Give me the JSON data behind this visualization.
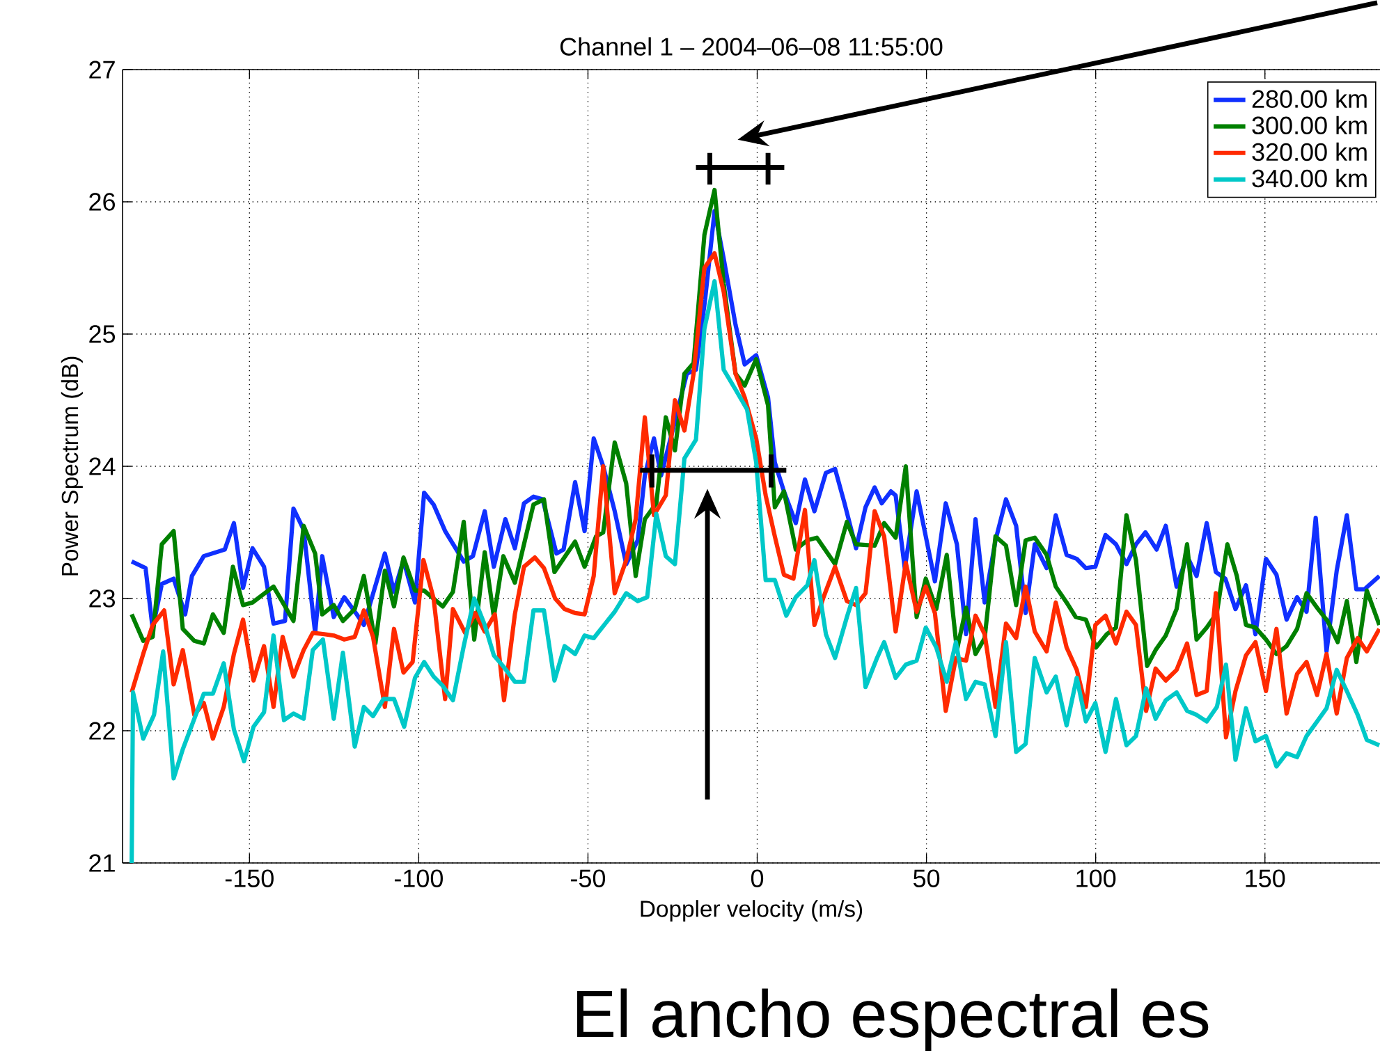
{
  "chart_data": {
    "type": "line",
    "title": "Channel 1 – 2004–06–08 11:55:00",
    "xlabel": "Doppler velocity (m/s)",
    "ylabel": "Power Spectrum (dB)",
    "xlim": [
      -187.5,
      184
    ],
    "ylim": [
      21,
      27
    ],
    "xticks": [
      -150,
      -100,
      -50,
      0,
      50,
      100,
      150
    ],
    "yticks": [
      21,
      22,
      23,
      24,
      25,
      26,
      27
    ],
    "grid": true,
    "legend": "top right",
    "annotations": [
      "El ancho espectral es"
    ],
    "series": [
      {
        "name": "280.00 km",
        "color": "#1030ff",
        "x": [
          -184.8,
          -180.7,
          -178.6,
          -175.9,
          -172.4,
          -169.0,
          -167.0,
          -163.5,
          -157.3,
          -154.6,
          -151.9,
          -149.1,
          -145.7,
          -142.9,
          -139.5,
          -137.0,
          -134.0,
          -130.6,
          -128.5,
          -125.1,
          -122.0,
          -118.3,
          -116.2,
          -110.0,
          -107.3,
          -104.5,
          -101.1,
          -98.4,
          -95.6,
          -92.2,
          -86.7,
          -84.0,
          -80.5,
          -77.8,
          -74.4,
          -71.6,
          -68.9,
          -66.1,
          -63.4,
          -59.3,
          -57.2,
          -53.8,
          -51.0,
          -48.3,
          -45.5,
          -42.1,
          -38.7,
          -35.3,
          -33.2,
          -30.5,
          -28.4,
          -25.0,
          -20.8,
          -18.1,
          -15.4,
          -12.6,
          -9.9,
          -6.4,
          -3.7,
          -0.3,
          3.2,
          5.2,
          7.9,
          11.4,
          14.1,
          16.9,
          20.3,
          23.0,
          25.8,
          29.2,
          32.0,
          34.7,
          36.8,
          39.5,
          40.9,
          43.6,
          47.1,
          52.5,
          55.7,
          59.0,
          61.7,
          64.5,
          67.2,
          70.4,
          73.5,
          76.5,
          79.3,
          82.0,
          85.5,
          88.2,
          91.4,
          94.4,
          97.1,
          99.9,
          102.9,
          106.0,
          109.1,
          111.9,
          114.7,
          118.0,
          120.7,
          123.9,
          127.0,
          129.8,
          132.8,
          135.5,
          138.3,
          141.3,
          144.4,
          147.2,
          150.3,
          153.4,
          156.4,
          159.5,
          162.3,
          165.0,
          168.2,
          171.2,
          174.2,
          177.0,
          179.4,
          183.8
        ],
        "values": [
          23.28,
          23.23,
          22.77,
          23.11,
          23.15,
          22.88,
          23.17,
          23.32,
          23.37,
          23.57,
          23.08,
          23.38,
          23.24,
          22.81,
          22.83,
          23.68,
          23.52,
          22.74,
          23.32,
          22.86,
          23.01,
          22.88,
          22.8,
          23.34,
          23.05,
          23.29,
          22.97,
          23.8,
          23.71,
          23.51,
          23.28,
          23.32,
          23.66,
          23.24,
          23.6,
          23.38,
          23.72,
          23.77,
          23.75,
          23.34,
          23.37,
          23.88,
          23.51,
          24.21,
          24.0,
          23.66,
          23.26,
          23.44,
          23.93,
          24.21,
          23.93,
          24.27,
          24.7,
          24.73,
          25.26,
          25.93,
          25.57,
          25.07,
          24.77,
          24.84,
          24.52,
          24.03,
          23.81,
          23.57,
          23.9,
          23.66,
          23.95,
          23.98,
          23.72,
          23.38,
          23.69,
          23.84,
          23.72,
          23.81,
          23.78,
          23.23,
          23.81,
          23.13,
          23.72,
          23.41,
          22.73,
          23.6,
          22.97,
          23.44,
          23.75,
          23.55,
          22.89,
          23.41,
          23.23,
          23.63,
          23.33,
          23.3,
          23.23,
          23.24,
          23.48,
          23.41,
          23.26,
          23.41,
          23.5,
          23.37,
          23.55,
          23.09,
          23.32,
          23.17,
          23.57,
          23.2,
          23.15,
          22.92,
          23.1,
          22.73,
          23.3,
          23.18,
          22.84,
          23.01,
          22.9,
          23.61,
          22.6,
          23.21,
          23.63,
          23.07,
          23.07,
          23.17
        ]
      },
      {
        "name": "300.00 km",
        "color": "#008000",
        "x": [
          -184.8,
          -181.4,
          -178.6,
          -175.9,
          -172.4,
          -169.7,
          -166.3,
          -163.5,
          -160.8,
          -157.6,
          -154.9,
          -151.9,
          -149.1,
          -142.9,
          -137.0,
          -134.0,
          -130.6,
          -128.5,
          -125.1,
          -122.4,
          -118.9,
          -116.2,
          -112.8,
          -110.0,
          -107.3,
          -104.5,
          -101.1,
          -98.4,
          -92.9,
          -89.9,
          -86.7,
          -83.6,
          -80.5,
          -77.8,
          -75.0,
          -71.6,
          -66.1,
          -63.0,
          -59.9,
          -53.8,
          -51.0,
          -47.6,
          -45.5,
          -42.1,
          -38.7,
          -35.9,
          -33.2,
          -29.8,
          -27.0,
          -24.3,
          -21.5,
          -18.8,
          -15.6,
          -12.6,
          -9.9,
          -6.4,
          -3.7,
          -0.3,
          3.2,
          5.2,
          7.9,
          11.4,
          14.8,
          17.6,
          23.0,
          26.5,
          29.2,
          34.7,
          37.5,
          40.9,
          43.9,
          47.1,
          49.8,
          52.9,
          56.0,
          59.0,
          61.7,
          64.5,
          67.2,
          70.4,
          73.5,
          76.5,
          79.3,
          82.0,
          85.5,
          88.2,
          91.4,
          94.1,
          97.1,
          100.1,
          103.3,
          106.0,
          109.1,
          111.9,
          115.2,
          117.7,
          120.7,
          123.9,
          127.0,
          129.8,
          132.8,
          135.8,
          138.9,
          141.7,
          144.4,
          147.2,
          150.3,
          153.4,
          156.4,
          159.5,
          162.3,
          165.7,
          168.5,
          171.5,
          174.2,
          177.0,
          180.1,
          183.8
        ],
        "values": [
          22.88,
          22.68,
          22.71,
          23.41,
          23.51,
          22.77,
          22.68,
          22.66,
          22.88,
          22.74,
          23.24,
          22.95,
          22.97,
          23.09,
          22.83,
          23.55,
          23.34,
          22.88,
          22.95,
          22.83,
          22.92,
          23.17,
          22.66,
          23.21,
          22.94,
          23.31,
          23.06,
          23.06,
          22.94,
          23.05,
          23.58,
          22.69,
          23.35,
          22.86,
          23.32,
          23.12,
          23.71,
          23.75,
          23.2,
          23.43,
          23.24,
          23.47,
          23.5,
          24.18,
          23.87,
          23.17,
          23.6,
          23.72,
          24.37,
          24.12,
          24.7,
          24.78,
          25.75,
          26.09,
          25.38,
          24.7,
          24.61,
          24.81,
          24.46,
          23.69,
          23.81,
          23.37,
          23.44,
          23.46,
          23.26,
          23.58,
          23.41,
          23.4,
          23.57,
          23.46,
          24.0,
          22.86,
          23.15,
          22.92,
          23.33,
          22.61,
          22.93,
          22.58,
          22.7,
          23.47,
          23.4,
          22.95,
          23.44,
          23.46,
          23.33,
          23.09,
          22.97,
          22.86,
          22.84,
          22.63,
          22.73,
          22.78,
          23.63,
          23.29,
          22.49,
          22.61,
          22.72,
          22.92,
          23.41,
          22.69,
          22.78,
          22.89,
          23.41,
          23.17,
          22.8,
          22.78,
          22.69,
          22.58,
          22.64,
          22.77,
          23.04,
          22.92,
          22.83,
          22.67,
          22.98,
          22.52,
          23.06,
          22.8
        ]
      },
      {
        "name": "320.00 km",
        "color": "#ff2a00",
        "x": [
          -184.8,
          -181.4,
          -178.6,
          -175.2,
          -172.4,
          -169.7,
          -166.3,
          -163.5,
          -160.8,
          -157.6,
          -154.6,
          -151.9,
          -148.8,
          -145.7,
          -142.9,
          -140.2,
          -137.0,
          -134.0,
          -131.3,
          -127.9,
          -125.1,
          -122.0,
          -118.9,
          -116.2,
          -113.5,
          -110.0,
          -107.3,
          -104.5,
          -101.8,
          -98.6,
          -95.6,
          -92.2,
          -89.9,
          -86.3,
          -83.3,
          -80.5,
          -77.5,
          -74.8,
          -71.6,
          -68.9,
          -65.7,
          -63.0,
          -59.7,
          -56.9,
          -53.8,
          -51.0,
          -48.3,
          -45.5,
          -42.1,
          -38.7,
          -35.9,
          -33.2,
          -30.5,
          -27.0,
          -24.3,
          -21.5,
          -18.8,
          -15.6,
          -12.6,
          -9.9,
          -6.4,
          -3.7,
          -0.3,
          2.5,
          5.2,
          7.9,
          10.7,
          14.1,
          16.9,
          19.6,
          23.0,
          26.5,
          29.2,
          32.0,
          34.7,
          37.5,
          40.9,
          43.9,
          47.1,
          49.8,
          52.5,
          55.7,
          58.7,
          61.7,
          64.5,
          67.2,
          70.4,
          73.5,
          76.5,
          79.3,
          82.0,
          85.5,
          88.2,
          91.4,
          94.4,
          97.1,
          99.9,
          102.9,
          106.0,
          109.1,
          111.9,
          114.9,
          117.7,
          120.7,
          123.9,
          127.0,
          129.8,
          132.8,
          135.5,
          138.5,
          141.3,
          144.4,
          147.2,
          150.3,
          153.4,
          156.4,
          159.5,
          162.3,
          165.4,
          168.2,
          171.2,
          174.2,
          177.4,
          180.1,
          183.8
        ],
        "values": [
          22.29,
          22.58,
          22.8,
          22.91,
          22.35,
          22.61,
          22.12,
          22.21,
          21.94,
          22.18,
          22.58,
          22.84,
          22.38,
          22.64,
          22.18,
          22.71,
          22.41,
          22.61,
          22.74,
          22.73,
          22.72,
          22.69,
          22.71,
          22.91,
          22.71,
          22.18,
          22.77,
          22.44,
          22.52,
          23.29,
          23.0,
          22.24,
          22.92,
          22.74,
          22.89,
          22.75,
          22.88,
          22.23,
          22.88,
          23.24,
          23.31,
          23.23,
          23.0,
          22.92,
          22.89,
          22.88,
          23.17,
          24.0,
          23.04,
          23.29,
          23.6,
          24.37,
          23.63,
          23.78,
          24.5,
          24.27,
          24.7,
          25.5,
          25.61,
          25.32,
          24.7,
          24.52,
          24.21,
          23.78,
          23.47,
          23.18,
          23.15,
          23.67,
          22.8,
          23.01,
          23.24,
          22.98,
          22.95,
          23.04,
          23.66,
          23.47,
          22.75,
          23.27,
          22.9,
          23.09,
          22.89,
          22.15,
          22.55,
          22.53,
          22.87,
          22.73,
          22.18,
          22.81,
          22.7,
          23.09,
          22.75,
          22.6,
          22.97,
          22.63,
          22.46,
          22.18,
          22.8,
          22.87,
          22.66,
          22.9,
          22.8,
          22.15,
          22.47,
          22.38,
          22.46,
          22.66,
          22.27,
          22.3,
          23.04,
          21.95,
          22.3,
          22.57,
          22.67,
          22.3,
          22.77,
          22.13,
          22.43,
          22.52,
          22.27,
          22.58,
          22.13,
          22.55,
          22.7,
          22.6,
          22.77
        ]
      },
      {
        "name": "340.00 km",
        "color": "#00c8c8",
        "x": [
          -184.8,
          -184.4,
          -181.4,
          -178.2,
          -175.5,
          -172.4,
          -169.7,
          -166.3,
          -163.5,
          -160.8,
          -157.6,
          -154.6,
          -151.6,
          -148.8,
          -145.7,
          -142.9,
          -139.8,
          -137.0,
          -134.0,
          -131.3,
          -128.3,
          -125.1,
          -122.4,
          -118.9,
          -116.2,
          -113.5,
          -110.4,
          -107.3,
          -104.3,
          -101.1,
          -98.4,
          -95.6,
          -92.9,
          -89.9,
          -86.7,
          -83.6,
          -80.5,
          -77.8,
          -74.8,
          -71.6,
          -68.9,
          -66.1,
          -63.0,
          -59.9,
          -56.9,
          -53.8,
          -51.0,
          -48.3,
          -44.9,
          -42.1,
          -38.7,
          -35.3,
          -32.5,
          -29.8,
          -27.0,
          -24.3,
          -21.5,
          -18.1,
          -15.6,
          -12.6,
          -9.9,
          -6.4,
          -3.0,
          -0.3,
          2.5,
          5.2,
          8.6,
          11.4,
          14.8,
          16.9,
          20.3,
          23.0,
          26.5,
          29.2,
          32.0,
          35.4,
          37.5,
          40.9,
          43.9,
          47.1,
          49.8,
          52.9,
          56.0,
          58.7,
          61.7,
          64.5,
          67.2,
          70.4,
          73.5,
          76.5,
          79.3,
          82.0,
          85.5,
          88.2,
          91.4,
          94.4,
          97.1,
          99.9,
          102.9,
          106.0,
          109.1,
          111.9,
          114.9,
          117.7,
          120.7,
          123.9,
          127.0,
          129.8,
          132.8,
          135.8,
          138.5,
          141.3,
          144.4,
          147.2,
          150.3,
          153.4,
          156.4,
          159.5,
          162.3,
          165.4,
          168.2,
          171.2,
          174.2,
          177.4,
          180.1,
          183.8
        ],
        "values": [
          21.0,
          22.29,
          21.94,
          22.12,
          22.6,
          21.64,
          21.86,
          22.09,
          22.28,
          22.28,
          22.51,
          22.01,
          21.77,
          22.03,
          22.14,
          22.72,
          22.08,
          22.13,
          22.09,
          22.61,
          22.69,
          22.09,
          22.59,
          21.88,
          22.18,
          22.11,
          22.24,
          22.24,
          22.03,
          22.4,
          22.52,
          22.41,
          22.34,
          22.23,
          22.64,
          23.0,
          22.8,
          22.57,
          22.48,
          22.37,
          22.37,
          22.91,
          22.91,
          22.38,
          22.64,
          22.58,
          22.72,
          22.7,
          22.81,
          22.9,
          23.04,
          22.98,
          23.01,
          23.64,
          23.32,
          23.26,
          24.06,
          24.2,
          25.04,
          25.4,
          24.73,
          24.58,
          24.43,
          24.03,
          23.14,
          23.14,
          22.87,
          23.01,
          23.1,
          23.29,
          22.73,
          22.55,
          22.86,
          23.08,
          22.33,
          22.55,
          22.67,
          22.4,
          22.5,
          22.53,
          22.78,
          22.63,
          22.37,
          22.67,
          22.24,
          22.37,
          22.35,
          21.96,
          22.67,
          21.84,
          21.9,
          22.55,
          22.29,
          22.41,
          22.04,
          22.4,
          22.07,
          22.21,
          21.84,
          22.24,
          21.89,
          21.96,
          22.32,
          22.09,
          22.23,
          22.29,
          22.15,
          22.12,
          22.07,
          22.18,
          22.5,
          21.78,
          22.17,
          21.92,
          21.96,
          21.73,
          21.83,
          21.8,
          21.96,
          22.07,
          22.17,
          22.46,
          22.3,
          22.12,
          21.93,
          21.89
        ]
      }
    ]
  }
}
